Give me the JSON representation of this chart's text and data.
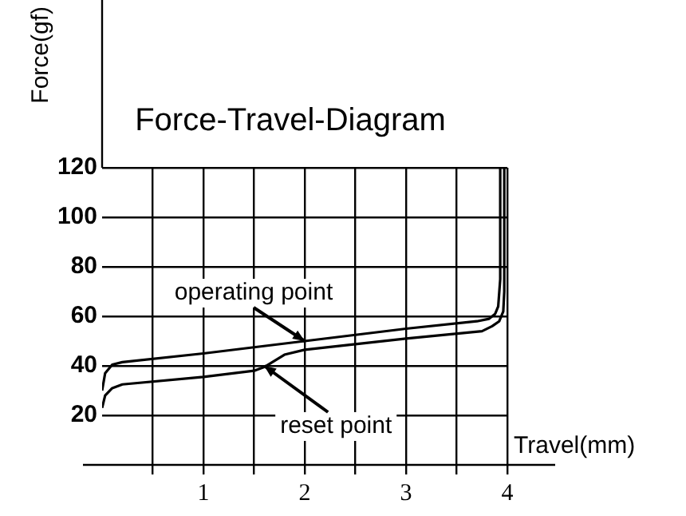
{
  "chart_data": {
    "type": "line",
    "title": "Force-Travel-Diagram",
    "xlabel": "Travel(mm)",
    "ylabel": "Force(gf)",
    "series": [
      {
        "color": "#000000",
        "x": [
          0,
          0.03,
          0.1,
          0.2,
          1.0,
          2.0,
          3.0,
          3.7,
          3.82,
          3.88,
          3.91,
          3.93,
          3.93
        ],
        "values": [
          30,
          37,
          40.5,
          41.5,
          45,
          50,
          55,
          58,
          59,
          61,
          64,
          75,
          120
        ]
      },
      {
        "color": "#000000",
        "x": [
          0,
          0.03,
          0.1,
          0.2,
          1.0,
          1.5,
          1.6,
          1.7,
          1.8,
          2.0,
          3.0,
          3.75,
          3.85,
          3.92,
          3.96,
          3.97,
          3.97
        ],
        "values": [
          23,
          28,
          31,
          32.5,
          35.5,
          38,
          39.5,
          42,
          44.5,
          46.5,
          51,
          54,
          56,
          58,
          62,
          70,
          120
        ]
      }
    ],
    "annotations": [
      {
        "text": "operating point",
        "x": 2,
        "y": 50
      },
      {
        "text": "reset point",
        "x": 1.6,
        "y": 40
      }
    ],
    "xlim": [
      0,
      4
    ],
    "xticks": [
      {
        "value": 0.5,
        "label": null
      },
      1,
      {
        "value": 1.5,
        "label": null
      },
      2,
      {
        "value": 2.5,
        "label": null
      },
      3,
      {
        "value": 3.5,
        "label": null
      },
      4
    ],
    "ylim": [
      0,
      120
    ],
    "yticks": [
      20,
      40,
      60,
      80,
      100,
      120
    ],
    "grid": true,
    "legend": false,
    "marker": "none",
    "line_style": "solid"
  }
}
